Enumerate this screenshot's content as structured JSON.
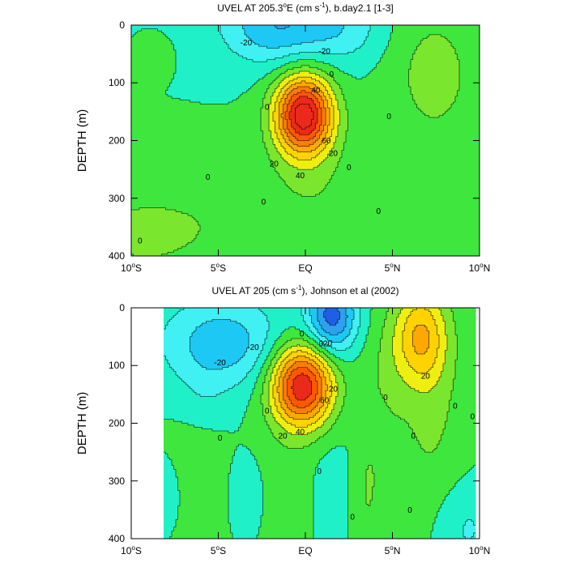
{
  "chart_data": [
    {
      "type": "contour",
      "title_main": "UVEL AT 205.3",
      "title_deg": "o",
      "title_mid": "E (cm s",
      "title_exp": "-1",
      "title_tail": "), b.day2.1 [1-3]",
      "ylabel": "DEPTH (m)",
      "xlim": [
        -10,
        10
      ],
      "ylim": [
        0,
        400
      ],
      "y_inverted": true,
      "y_ticks": [
        {
          "v": 0,
          "label": "0"
        },
        {
          "v": 100,
          "label": "100"
        },
        {
          "v": 200,
          "label": "200"
        },
        {
          "v": 300,
          "label": "300"
        },
        {
          "v": 400,
          "label": "400"
        }
      ],
      "x_ticks": [
        {
          "v": -10,
          "num": "10",
          "deg": "o",
          "hem": "S"
        },
        {
          "v": -5,
          "num": "5",
          "deg": "o",
          "hem": "S"
        },
        {
          "v": 0,
          "num": "EQ",
          "deg": "",
          "hem": ""
        },
        {
          "v": 5,
          "num": "5",
          "deg": "o",
          "hem": "N"
        },
        {
          "v": 10,
          "num": "10",
          "deg": "o",
          "hem": "N"
        }
      ],
      "data_x_range": [
        -10,
        10
      ],
      "contour_interval": 10,
      "blobs": [
        {
          "x": -0.1,
          "y": 155,
          "sx": 1.15,
          "sy": 48,
          "a": 85
        },
        {
          "x": -1.5,
          "y": 0,
          "sx": 2.3,
          "sy": 48,
          "a": -30
        },
        {
          "x": 2.4,
          "y": 5,
          "sx": 1.6,
          "sy": 42,
          "a": -12
        },
        {
          "x": 7.4,
          "y": 85,
          "sx": 1.8,
          "sy": 85,
          "a": 14
        },
        {
          "x": -9.5,
          "y": 360,
          "sx": 2.6,
          "sy": 60,
          "a": 12
        },
        {
          "x": -4.8,
          "y": 340,
          "sx": 2.2,
          "sy": 70,
          "a": 6
        },
        {
          "x": 6.5,
          "y": 340,
          "sx": 3.5,
          "sy": 80,
          "a": 6
        },
        {
          "x": -8.6,
          "y": 55,
          "sx": 0.5,
          "sy": 18,
          "a": 9
        },
        {
          "x": 0.2,
          "y": 270,
          "sx": 1.8,
          "sy": 90,
          "a": 8
        }
      ],
      "labels": [
        {
          "x": -3.4,
          "y": 30,
          "t": "-20"
        },
        {
          "x": 1.1,
          "y": 45,
          "t": "-20"
        },
        {
          "x": 0.6,
          "y": 112,
          "t": "40"
        },
        {
          "x": 1.5,
          "y": 85,
          "t": "0"
        },
        {
          "x": -2.2,
          "y": 142,
          "t": "0"
        },
        {
          "x": 4.8,
          "y": 158,
          "t": "0"
        },
        {
          "x": 1.2,
          "y": 200,
          "t": "60"
        },
        {
          "x": 1.6,
          "y": 222,
          "t": "20"
        },
        {
          "x": -1.8,
          "y": 240,
          "t": "20"
        },
        {
          "x": -0.3,
          "y": 260,
          "t": "40"
        },
        {
          "x": 2.5,
          "y": 246,
          "t": "0"
        },
        {
          "x": -5.6,
          "y": 263,
          "t": "0"
        },
        {
          "x": -2.4,
          "y": 306,
          "t": "0"
        },
        {
          "x": 4.2,
          "y": 322,
          "t": "0"
        },
        {
          "x": -9.5,
          "y": 373,
          "t": "0"
        }
      ]
    },
    {
      "type": "contour",
      "title_main": "UVEL AT 205 (cm s",
      "title_exp": "-1",
      "title_tail": "), Johnson et al (2002)",
      "ylabel": "DEPTH (m)",
      "xlim": [
        -10,
        10
      ],
      "ylim": [
        0,
        400
      ],
      "y_inverted": true,
      "y_ticks": [
        {
          "v": 0,
          "label": "0"
        },
        {
          "v": 100,
          "label": "100"
        },
        {
          "v": 200,
          "label": "200"
        },
        {
          "v": 300,
          "label": "300"
        },
        {
          "v": 400,
          "label": "400"
        }
      ],
      "x_ticks": [
        {
          "v": -10,
          "num": "10",
          "deg": "o",
          "hem": "S"
        },
        {
          "v": -5,
          "num": "5",
          "deg": "o",
          "hem": "S"
        },
        {
          "v": 0,
          "num": "EQ",
          "deg": "",
          "hem": ""
        },
        {
          "v": 5,
          "num": "5",
          "deg": "o",
          "hem": "N"
        },
        {
          "v": 10,
          "num": "10",
          "deg": "o",
          "hem": "N"
        }
      ],
      "data_x_range": [
        -8.1,
        9.8
      ],
      "contour_interval": 10,
      "blobs": [
        {
          "x": -0.2,
          "y": 135,
          "sx": 1.25,
          "sy": 50,
          "a": 80
        },
        {
          "x": 1.5,
          "y": 15,
          "sx": 1.0,
          "sy": 45,
          "a": -45
        },
        {
          "x": -4.8,
          "y": 60,
          "sx": 2.5,
          "sy": 55,
          "a": -26
        },
        {
          "x": 6.6,
          "y": 50,
          "sx": 1.1,
          "sy": 60,
          "a": 38
        },
        {
          "x": 3.6,
          "y": 300,
          "sx": 0.6,
          "sy": 140,
          "a": 10
        },
        {
          "x": -6.5,
          "y": 330,
          "sx": 1.5,
          "sy": 80,
          "a": 8
        },
        {
          "x": 7.2,
          "y": 200,
          "sx": 1.5,
          "sy": 130,
          "a": 11
        },
        {
          "x": -1.4,
          "y": 330,
          "sx": 1.2,
          "sy": 80,
          "a": 7
        },
        {
          "x": 1.4,
          "y": 330,
          "sx": 0.7,
          "sy": 70,
          "a": -6
        },
        {
          "x": -3.3,
          "y": 330,
          "sx": 0.9,
          "sy": 50,
          "a": -8
        },
        {
          "x": 4.7,
          "y": 140,
          "sx": 0.7,
          "sy": 90,
          "a": 7
        },
        {
          "x": -8.0,
          "y": 330,
          "sx": 0.9,
          "sy": 50,
          "a": -10
        },
        {
          "x": 9.2,
          "y": 380,
          "sx": 1.3,
          "sy": 60,
          "a": -12
        },
        {
          "x": 3.6,
          "y": 200,
          "sx": 0.8,
          "sy": 40,
          "a": -6
        },
        {
          "x": -5.8,
          "y": 150,
          "sx": 1.0,
          "sy": 40,
          "a": -5
        }
      ],
      "labels": [
        {
          "x": -4.9,
          "y": 95,
          "t": "-20"
        },
        {
          "x": -3.0,
          "y": 68,
          "t": "-20"
        },
        {
          "x": 1.2,
          "y": 62,
          "t": "-20"
        },
        {
          "x": -0.2,
          "y": 45,
          "t": "0"
        },
        {
          "x": 0.9,
          "y": 62,
          "t": "0"
        },
        {
          "x": 1.6,
          "y": 140,
          "t": "20"
        },
        {
          "x": 1.1,
          "y": 160,
          "t": "60"
        },
        {
          "x": -0.3,
          "y": 215,
          "t": "40"
        },
        {
          "x": -1.3,
          "y": 222,
          "t": "20"
        },
        {
          "x": 6.9,
          "y": 118,
          "t": "20"
        },
        {
          "x": 4.6,
          "y": 155,
          "t": "0"
        },
        {
          "x": -2.2,
          "y": 178,
          "t": "0"
        },
        {
          "x": -4.9,
          "y": 225,
          "t": "0"
        },
        {
          "x": 8.6,
          "y": 170,
          "t": "0"
        },
        {
          "x": 9.6,
          "y": 188,
          "t": "0"
        },
        {
          "x": 6.2,
          "y": 222,
          "t": "0"
        },
        {
          "x": 0.8,
          "y": 283,
          "t": "0"
        },
        {
          "x": 2.7,
          "y": 362,
          "t": "0"
        },
        {
          "x": 6.0,
          "y": 350,
          "t": "0"
        }
      ]
    }
  ]
}
